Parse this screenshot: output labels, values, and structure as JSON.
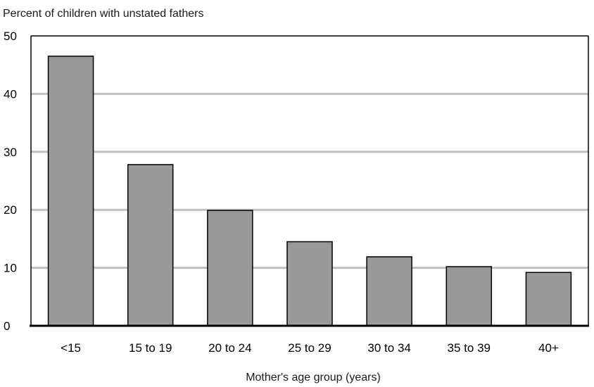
{
  "chart_data": {
    "type": "bar",
    "ylabel": "Percent of children with unstated fathers",
    "xlabel": "Mother's age group (years)",
    "categories": [
      "<15",
      "15 to 19",
      "20 to 24",
      "25 to 29",
      "30 to 34",
      "35 to 39",
      "40+"
    ],
    "values": [
      46.5,
      27.8,
      19.9,
      14.5,
      11.9,
      10.2,
      9.2
    ],
    "ylim": [
      0,
      50
    ],
    "yticks": [
      0,
      10,
      20,
      30,
      40,
      50
    ],
    "grid": true,
    "bar_color": "#999999",
    "grid_color": "#c0c0c0"
  }
}
